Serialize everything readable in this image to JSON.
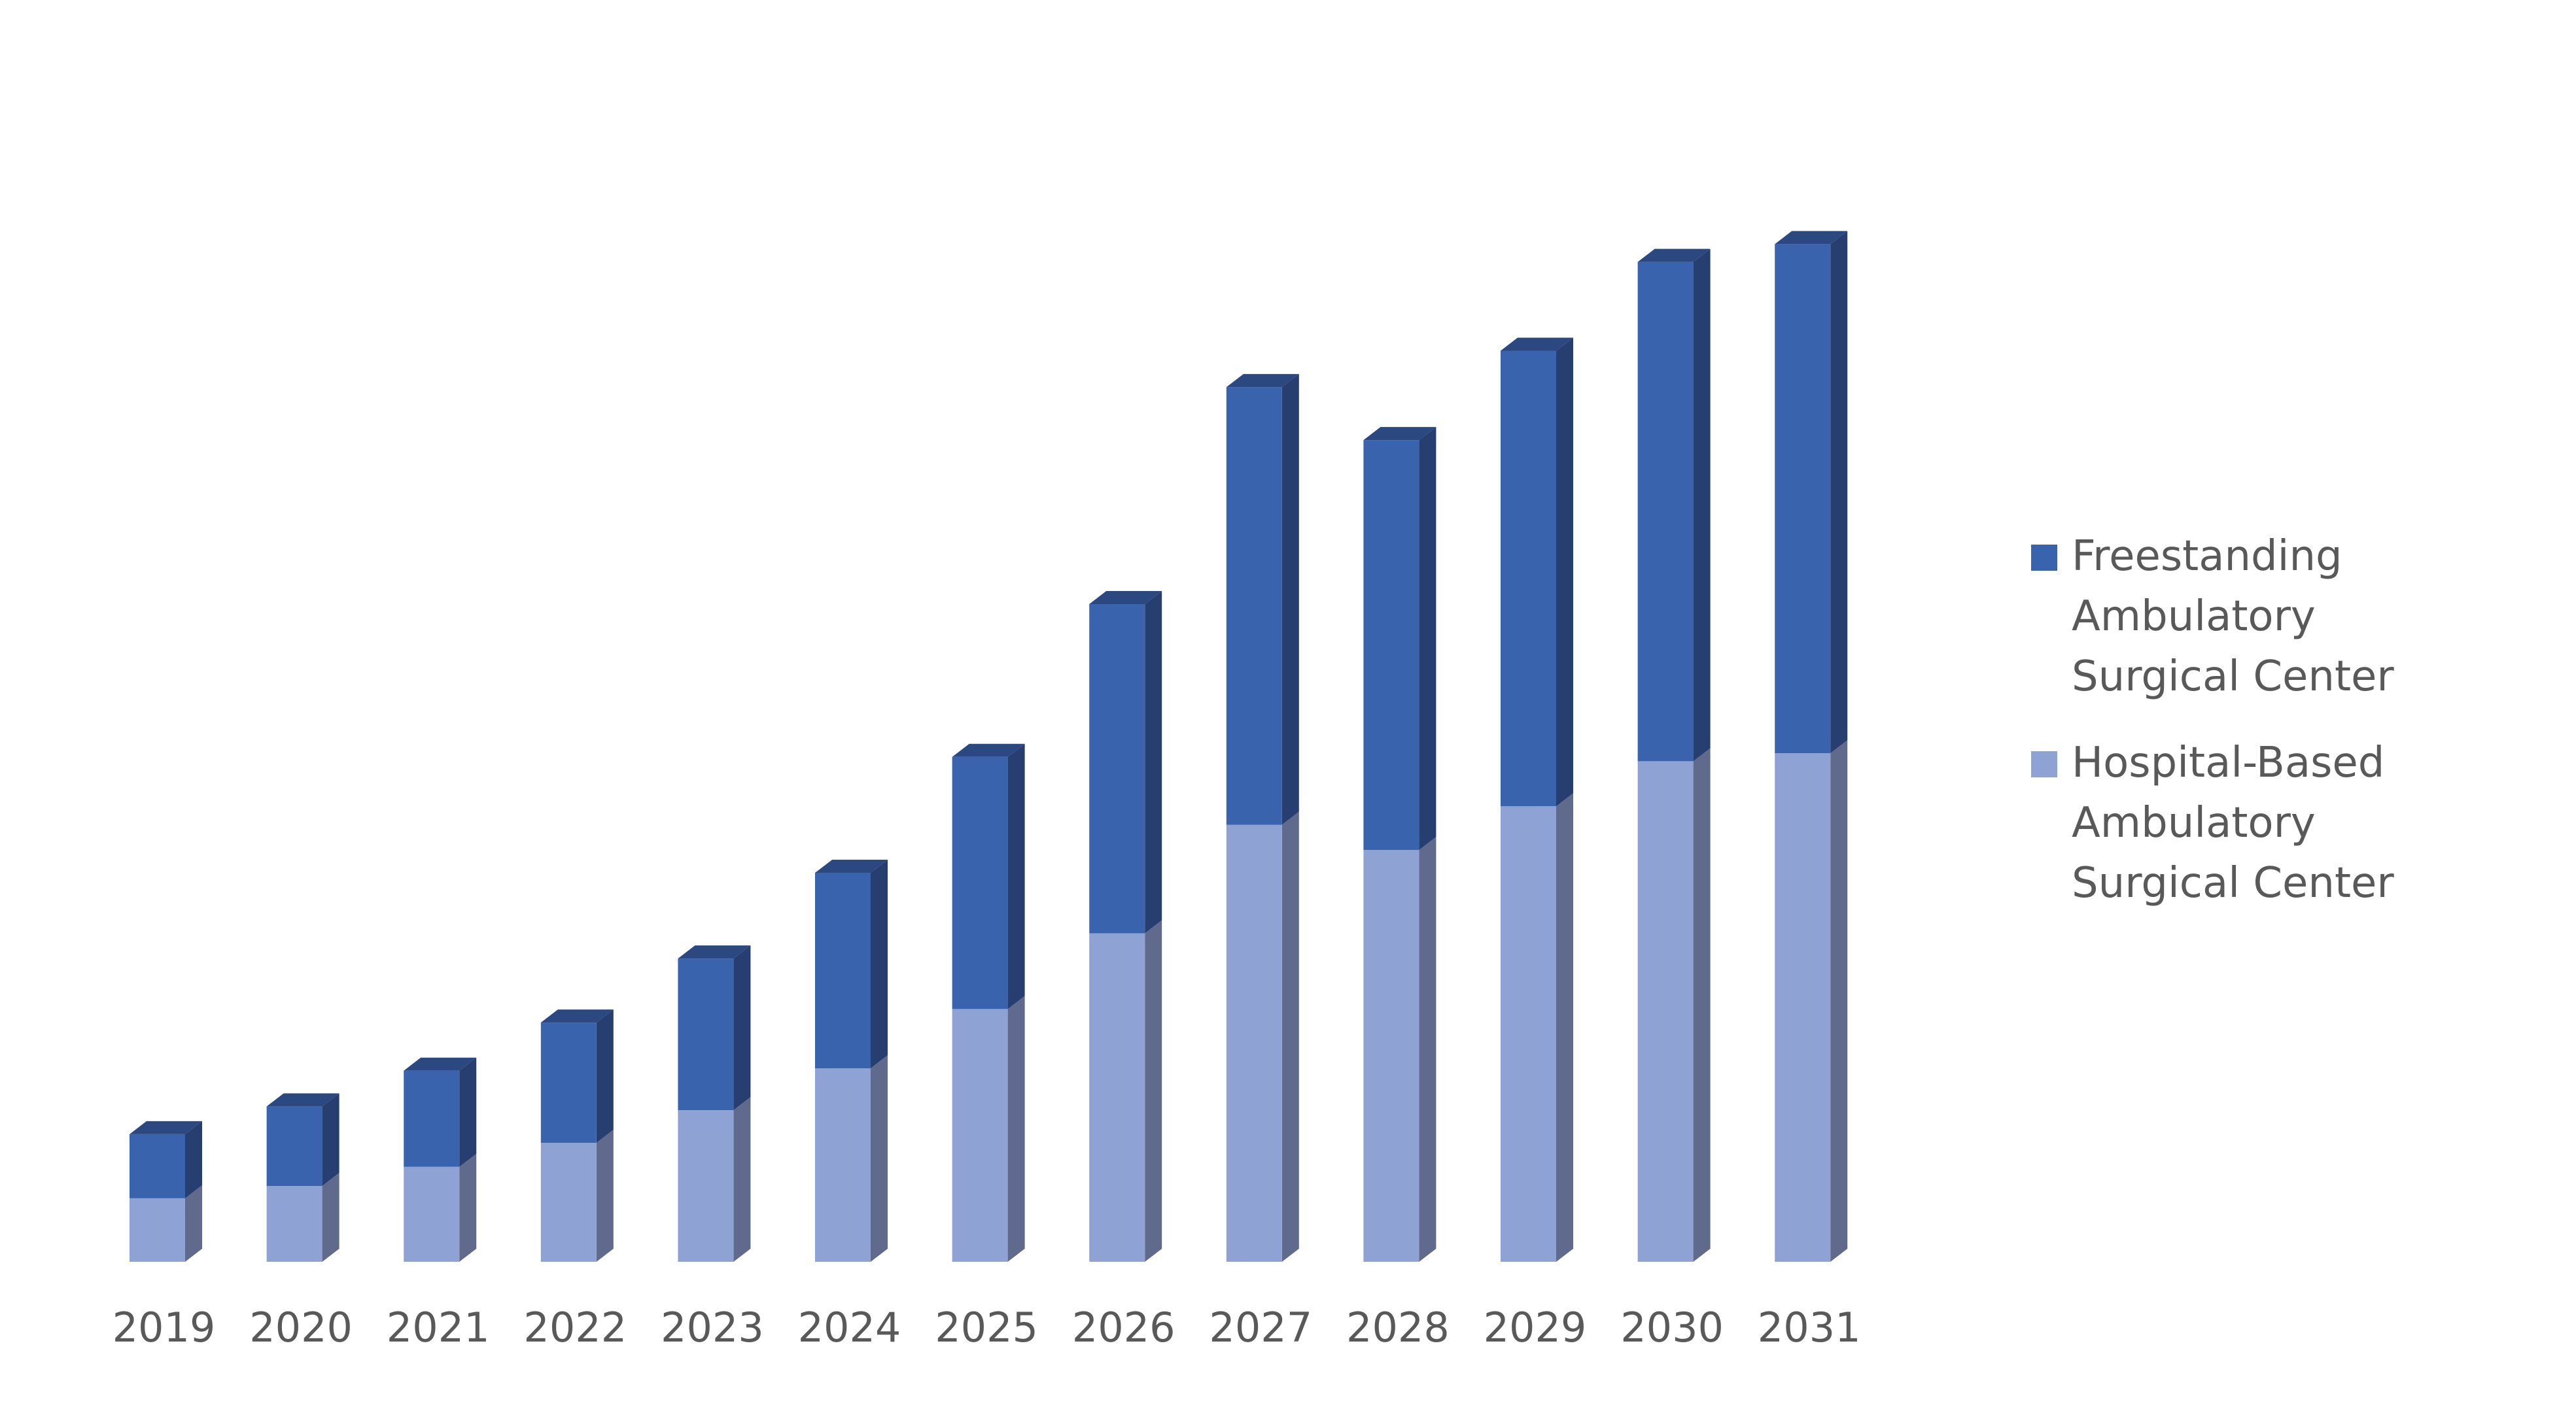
{
  "chart_data": {
    "type": "bar",
    "stacked": true,
    "style": "3d-column",
    "categories": [
      "2019",
      "2020",
      "2021",
      "2022",
      "2023",
      "2024",
      "2025",
      "2026",
      "2027",
      "2028",
      "2029",
      "2030",
      "2031"
    ],
    "series": [
      {
        "name": "Hospital-Based Ambulatory Surgical Center",
        "color": "#8FA2D4",
        "side_color": "#5F6A8C",
        "values": [
          10.3,
          12.3,
          15.4,
          19.3,
          24.6,
          31.4,
          41.0,
          53.3,
          70.9,
          66.8,
          73.9,
          81.2,
          82.5
        ]
      },
      {
        "name": "Freestanding Ambulatory Surgical Center",
        "color": "#3A63AE",
        "side_color": "#263F70",
        "values": [
          10.4,
          12.9,
          15.6,
          19.5,
          24.6,
          31.7,
          40.9,
          53.4,
          71.0,
          66.5,
          73.9,
          81.0,
          82.6
        ]
      }
    ],
    "ylim": [
      0,
      175
    ],
    "grid": false,
    "legend_position": "right"
  },
  "legend": {
    "items": [
      {
        "label": "Freestanding Ambulatory Surgical Center",
        "color": "#3A63AE"
      },
      {
        "label": "Hospital-Based Ambulatory Surgical Center",
        "color": "#8FA2D4"
      }
    ]
  }
}
